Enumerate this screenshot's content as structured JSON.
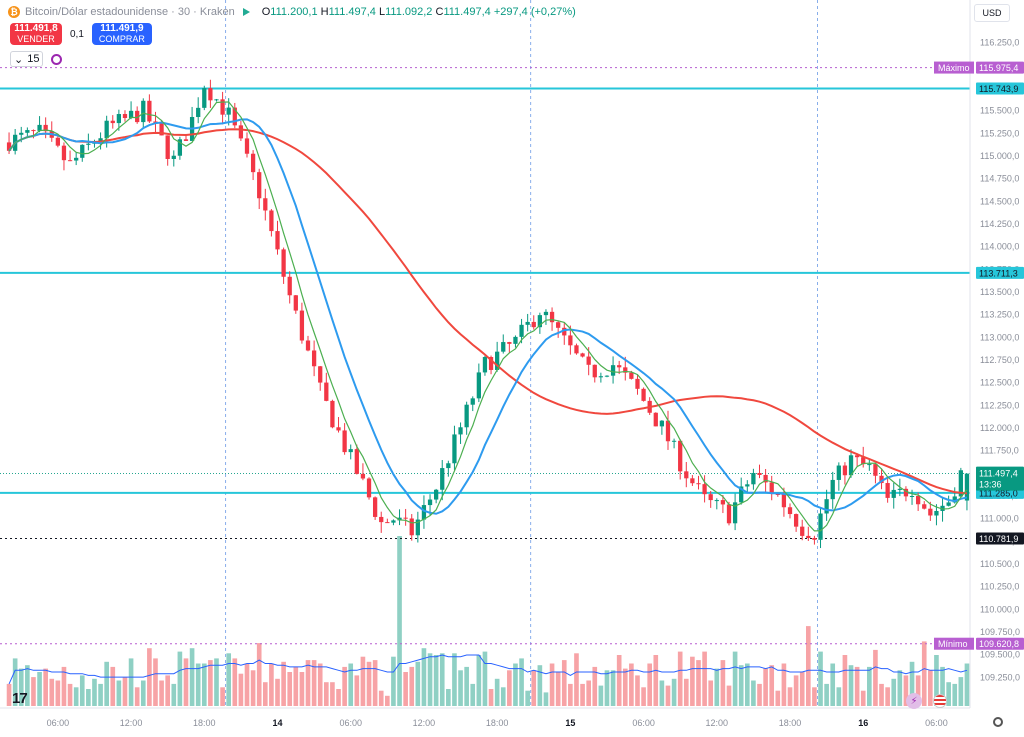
{
  "header": {
    "symbol_title": "Bitcoin/Dólar estadounidense · 30 · Kraken",
    "open_label": "O",
    "open": "111.200,1",
    "high_label": "H",
    "high": "111.497,4",
    "low_label": "L",
    "low": "111.092,2",
    "close_label": "C",
    "close": "111.497,4",
    "change": "+297,4 (+0,27%)"
  },
  "trade": {
    "sell_price": "111.491,8",
    "sell_label": "VENDER",
    "spread": "0,1",
    "buy_price": "111.491,9",
    "buy_label": "COMPRAR"
  },
  "indicator": {
    "label": "15"
  },
  "currency": {
    "label": "USD"
  },
  "logo": {
    "text": "17"
  },
  "colors": {
    "up": "#089981",
    "down": "#f23645",
    "up_vol": "#8fd0c4",
    "down_vol": "#f7a3a6",
    "ma_blue": "#2e9bef",
    "ma_green": "#4caf50",
    "ma_red": "#f0483e",
    "level_cyan": "#26c6da",
    "purple": "#b85fd1"
  },
  "chart_data": {
    "type": "candlestick",
    "symbol": "BTC/USD",
    "interval": "30",
    "price_axis": {
      "min": 109000,
      "max": 116500,
      "ticks": [
        "116.250,0",
        "116.000,0",
        "115.750,0",
        "115.500,0",
        "115.250,0",
        "115.000,0",
        "114.750,0",
        "114.500,0",
        "114.250,0",
        "114.000,0",
        "113.750,0",
        "113.500,0",
        "113.250,0",
        "113.000,0",
        "112.750,0",
        "112.500,0",
        "112.250,0",
        "112.000,0",
        "111.750,0",
        "111.500,0",
        "111.250,0",
        "111.000,0",
        "110.750,0",
        "110.500,0",
        "110.250,0",
        "110.000,0",
        "109.750,0",
        "109.500,0",
        "109.250,0"
      ],
      "tick_values": [
        116250,
        116000,
        115750,
        115500,
        115250,
        115000,
        114750,
        114500,
        114250,
        114000,
        113750,
        113500,
        113250,
        113000,
        112750,
        112500,
        112250,
        112000,
        111750,
        111500,
        111250,
        111000,
        110750,
        110500,
        110250,
        110000,
        109750,
        109500,
        109250
      ]
    },
    "time_axis": {
      "labels": [
        "06:00",
        "12:00",
        "18:00",
        "14",
        "06:00",
        "12:00",
        "18:00",
        "15",
        "06:00",
        "12:00",
        "18:00",
        "16",
        "06:00"
      ],
      "bold": [
        false,
        false,
        false,
        true,
        false,
        false,
        false,
        true,
        false,
        false,
        false,
        true,
        false
      ],
      "index": [
        8,
        20,
        32,
        44,
        56,
        68,
        80,
        92,
        104,
        116,
        128,
        140,
        152
      ]
    },
    "session_dividers_index": [
      36,
      86,
      133
    ],
    "levels": [
      {
        "label": "Máximo",
        "value_text": "115.975,4",
        "value": 115975.4,
        "style": "dotted-purple"
      },
      {
        "value_text": "115.743,9",
        "value": 115743.9,
        "style": "cyan"
      },
      {
        "value_text": "113.711,3",
        "value": 113711.3,
        "style": "cyan"
      },
      {
        "value_text": "111.285,0",
        "value": 111285.0,
        "style": "cyan"
      },
      {
        "value_text": "110.781,9",
        "value": 110781.9,
        "style": "dotted-dark"
      },
      {
        "label": "Mínimo",
        "value_text": "109.620,8",
        "value": 109620.8,
        "style": "dotted-purple"
      }
    ],
    "last_price": {
      "value": 111497.4,
      "value_text": "111.497,4",
      "countdown": "13:36"
    },
    "candles": [],
    "volume": [],
    "volume_ma": [],
    "ma_fast": [],
    "ma_mid": [],
    "ma_slow": []
  }
}
